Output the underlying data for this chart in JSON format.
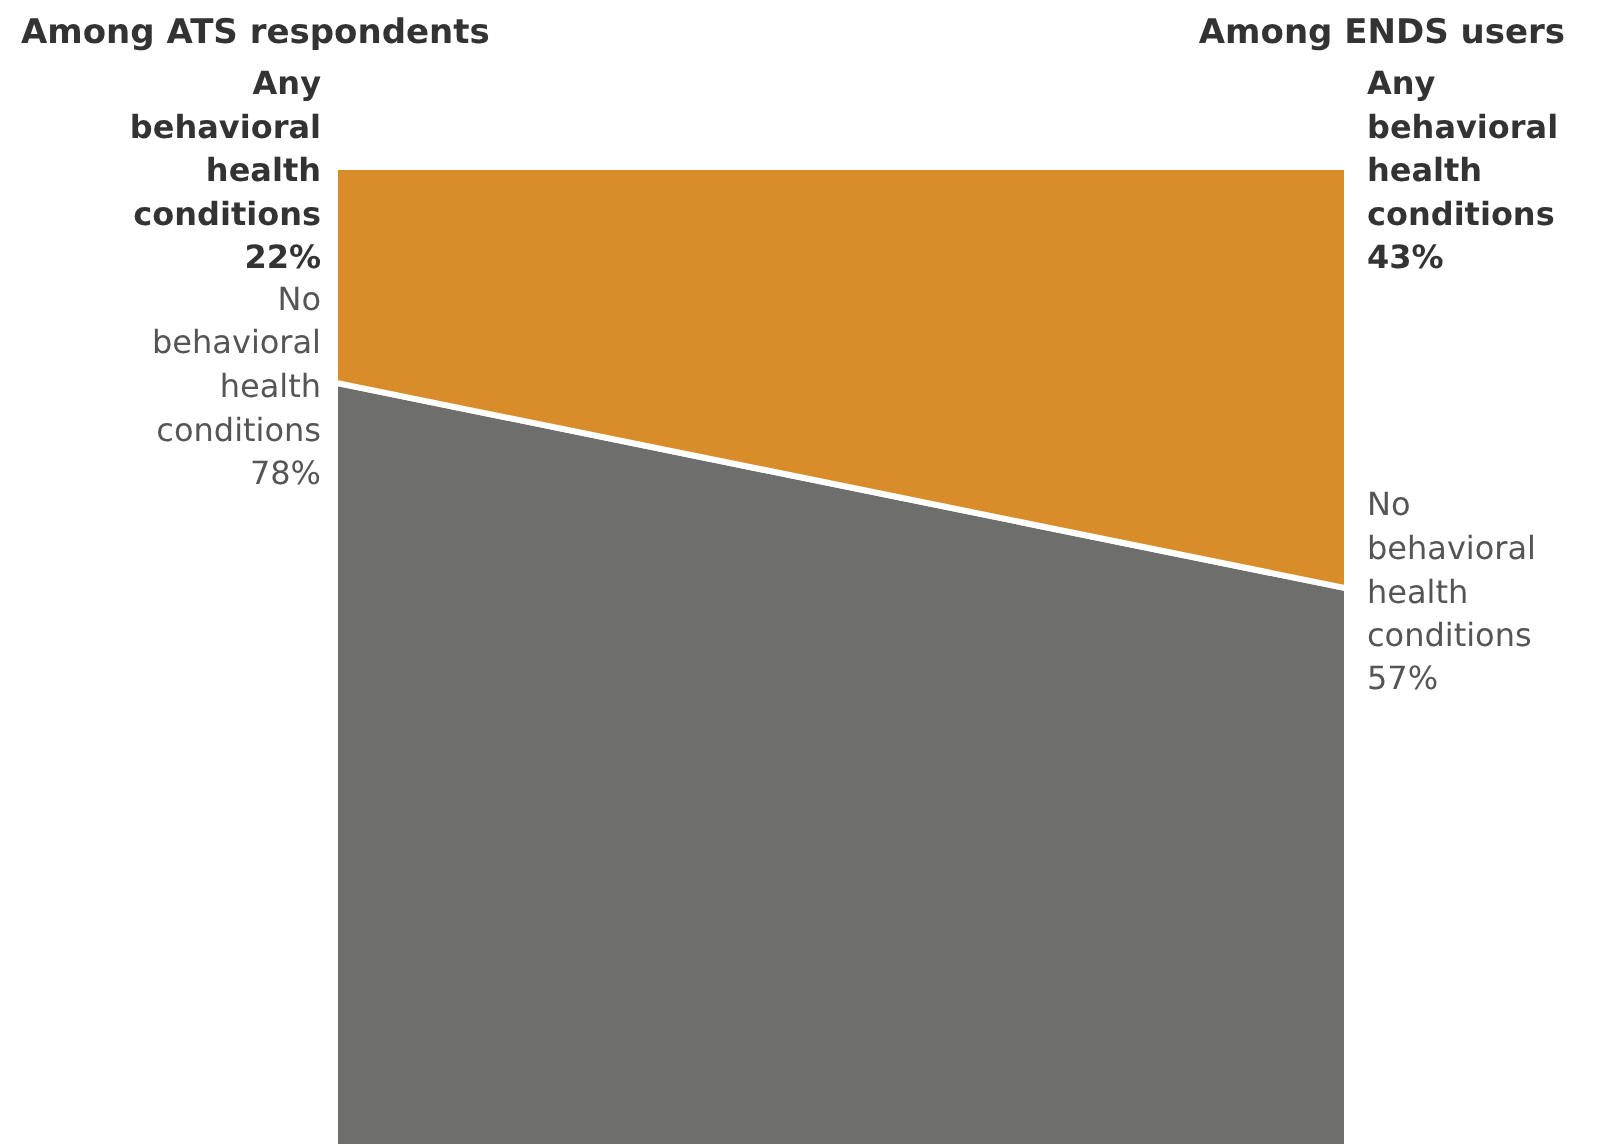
{
  "chart_data": {
    "type": "area",
    "stacked": true,
    "categories": [
      "Among ATS respondents",
      "Among ENDS users"
    ],
    "series": [
      {
        "name": "No behavioral health conditions",
        "color": "#6e6f6d",
        "values": [
          78,
          57
        ],
        "value_labels": [
          "78%",
          "57%"
        ]
      },
      {
        "name": "Any behavioral health conditions",
        "color": "#d98c2a",
        "values": [
          22,
          43
        ],
        "value_labels": [
          "22%",
          "43%"
        ]
      }
    ]
  }
}
